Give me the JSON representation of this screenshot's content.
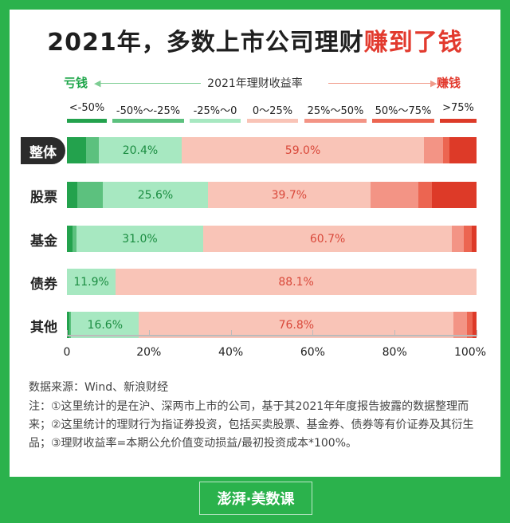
{
  "title": {
    "prefix": "2021年，多数上市公司理财",
    "highlight": "赚到了钱"
  },
  "axis": {
    "lose": "亏钱",
    "earn": "赚钱",
    "title": "2021年理财收益率"
  },
  "legend": [
    {
      "label": "<-50%",
      "color": "#23a24d"
    },
    {
      "label": "-50%～-25%",
      "color": "#5cc17e"
    },
    {
      "label": "-25%～0",
      "color": "#a7e8c1"
    },
    {
      "label": "0～25%",
      "color": "#f9c4b7"
    },
    {
      "label": "25%～50%",
      "color": "#f39485"
    },
    {
      "label": "50%～75%",
      "color": "#ec6551"
    },
    {
      "label": ">75%",
      "color": "#dd3a28"
    }
  ],
  "chart_data": {
    "type": "bar",
    "stacked": true,
    "categories": [
      "整体",
      "股票",
      "基金",
      "债券",
      "其他"
    ],
    "series": [
      {
        "name": "<-50%",
        "values": [
          4.6,
          2.6,
          1.3,
          0.0,
          0.6
        ]
      },
      {
        "name": "-50%～-25%",
        "values": [
          3.1,
          6.2,
          1.0,
          0.0,
          0.4
        ]
      },
      {
        "name": "-25%～0",
        "values": [
          20.4,
          25.6,
          31.0,
          11.9,
          16.6
        ]
      },
      {
        "name": "0～25%",
        "values": [
          59.0,
          39.7,
          60.7,
          88.1,
          76.8
        ]
      },
      {
        "name": "25%～50%",
        "values": [
          4.7,
          11.7,
          2.9,
          0.0,
          3.2
        ]
      },
      {
        "name": "50%～75%",
        "values": [
          1.6,
          3.4,
          2.0,
          0.0,
          1.5
        ]
      },
      {
        "name": ">75%",
        "values": [
          6.6,
          10.8,
          1.1,
          0.0,
          0.9
        ]
      }
    ],
    "labeled_series": [
      "-25%～0",
      "0～25%"
    ],
    "xlim": [
      0,
      100
    ],
    "xticks": [
      "0",
      "20%",
      "40%",
      "60%",
      "80%",
      "100%"
    ]
  },
  "source": "数据来源：Wind、新浪财经",
  "note": "注：①这里统计的是在沪、深两市上市的公司，基于其2021年年度报告披露的数据整理而来；②这里统计的理财行为指证券投资，包括买卖股票、基金券、债券等有价证券及其衍生品；③理财收益率=本期公允价值变动损益/最初投资成本*100%。",
  "footer": "澎湃·美数课"
}
